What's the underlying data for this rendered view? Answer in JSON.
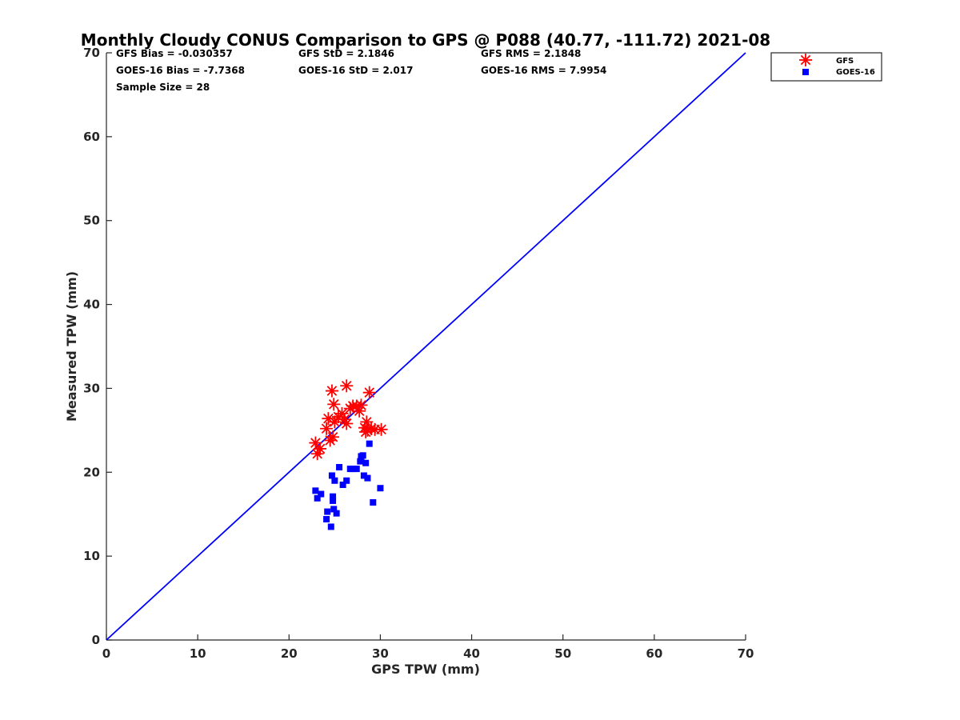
{
  "chart_data": {
    "type": "scatter",
    "title": "Monthly Cloudy CONUS Comparison to GPS @ P088 (40.77, -111.72) 2021-08",
    "xlabel": "GPS TPW (mm)",
    "ylabel": "Measured TPW (mm)",
    "xlim": [
      0,
      70
    ],
    "ylim": [
      0,
      70
    ],
    "xticks": [
      "0",
      "10",
      "20",
      "30",
      "40",
      "50",
      "60",
      "70"
    ],
    "yticks": [
      "0",
      "10",
      "20",
      "30",
      "40",
      "50",
      "60",
      "70"
    ],
    "grid": false,
    "legend_position": "top-right, outside plot area",
    "reference_line": {
      "x": [
        0,
        70
      ],
      "y": [
        0,
        70
      ],
      "color": "#0000ff"
    },
    "stats": [
      [
        "GFS Bias = -0.030357",
        "GFS StD = 2.1846",
        "GFS RMS = 2.1848"
      ],
      [
        "GOES-16 Bias = -7.7368",
        "GOES-16 StD = 2.017",
        "GOES-16 RMS = 7.9954"
      ],
      [
        "Sample Size = 28"
      ]
    ],
    "series": [
      {
        "name": "GFS",
        "marker": "asterisk",
        "color": "#ff0000",
        "points": [
          [
            22.9,
            23.5
          ],
          [
            23.1,
            22.2
          ],
          [
            23.4,
            22.8
          ],
          [
            24.1,
            25.2
          ],
          [
            24.3,
            26.4
          ],
          [
            24.5,
            23.8
          ],
          [
            24.7,
            29.7
          ],
          [
            24.8,
            24.2
          ],
          [
            24.9,
            28.1
          ],
          [
            25.0,
            26.0
          ],
          [
            25.4,
            26.6
          ],
          [
            25.8,
            27.0
          ],
          [
            26.1,
            26.3
          ],
          [
            26.3,
            25.8
          ],
          [
            26.3,
            30.3
          ],
          [
            26.7,
            27.6
          ],
          [
            27.0,
            27.9
          ],
          [
            27.4,
            27.9
          ],
          [
            27.7,
            27.3
          ],
          [
            27.9,
            28.0
          ],
          [
            28.3,
            25.3
          ],
          [
            28.4,
            24.8
          ],
          [
            28.5,
            26.0
          ],
          [
            28.6,
            25.0
          ],
          [
            28.8,
            29.5
          ],
          [
            29.0,
            25.2
          ],
          [
            29.4,
            25.1
          ],
          [
            30.1,
            25.1
          ]
        ]
      },
      {
        "name": "GOES-16",
        "marker": "square",
        "color": "#0000ff",
        "points": [
          [
            22.9,
            17.8
          ],
          [
            23.1,
            16.9
          ],
          [
            23.5,
            17.4
          ],
          [
            24.1,
            14.4
          ],
          [
            24.2,
            15.3
          ],
          [
            24.6,
            13.5
          ],
          [
            24.7,
            19.6
          ],
          [
            24.8,
            16.6
          ],
          [
            24.8,
            17.1
          ],
          [
            24.9,
            15.6
          ],
          [
            25.0,
            19.0
          ],
          [
            25.2,
            15.1
          ],
          [
            25.5,
            20.6
          ],
          [
            25.9,
            18.5
          ],
          [
            26.3,
            19.0
          ],
          [
            26.7,
            20.4
          ],
          [
            27.0,
            20.4
          ],
          [
            27.4,
            20.4
          ],
          [
            27.8,
            21.3
          ],
          [
            27.9,
            21.9
          ],
          [
            28.2,
            19.6
          ],
          [
            28.4,
            21.1
          ],
          [
            28.6,
            19.3
          ],
          [
            28.8,
            23.4
          ],
          [
            29.2,
            16.4
          ],
          [
            30.0,
            18.1
          ],
          [
            27.9,
            21.5
          ],
          [
            28.1,
            22.0
          ]
        ]
      }
    ]
  }
}
